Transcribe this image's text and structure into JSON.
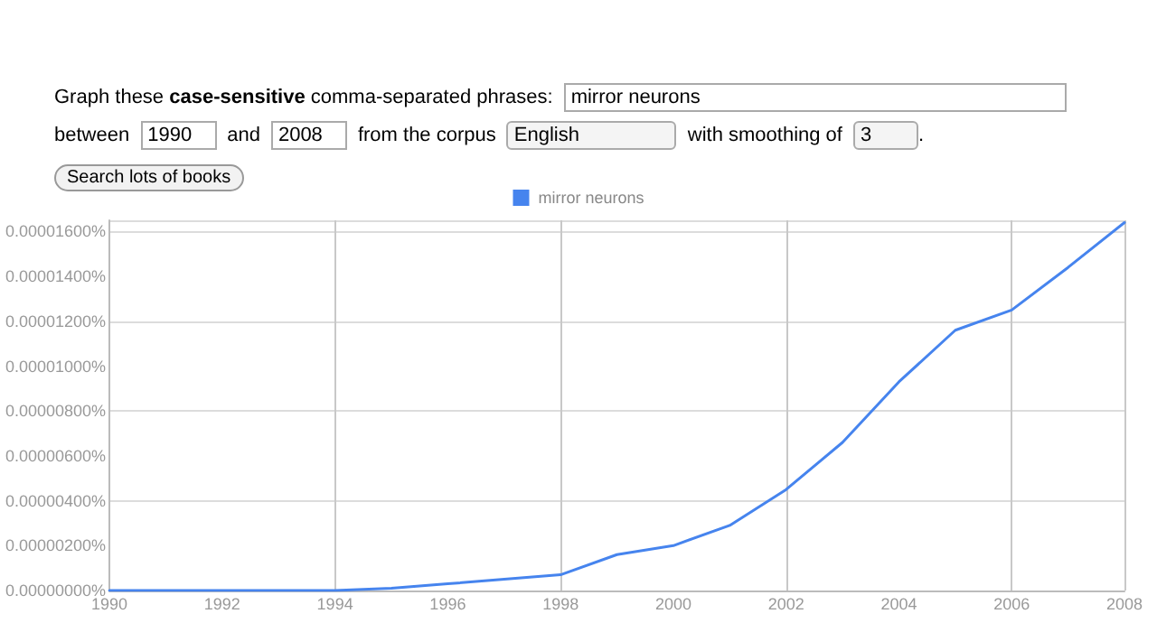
{
  "chart_data": {
    "type": "line",
    "annotations": [
      "Graph these case-sensitive comma-separated phrases:",
      "mirror neurons",
      "between",
      "1990",
      "and",
      "2008",
      "from the corpus",
      "English",
      "with smoothing of",
      "3",
      ".",
      "Search lots of books"
    ],
    "x": [
      1990,
      1991,
      1992,
      1993,
      1994,
      1995,
      1996,
      1997,
      1998,
      1999,
      2000,
      2001,
      2002,
      2003,
      2004,
      2005,
      2006,
      2007,
      2008
    ],
    "series": [
      {
        "name": "mirror neurons",
        "color": "#4684ee",
        "values": [
          0,
          0,
          0,
          0,
          0,
          1e-07,
          3e-07,
          5e-07,
          7e-07,
          1.6e-06,
          2e-06,
          2.9e-06,
          4.5e-06,
          6.6e-06,
          9.3e-06,
          1.16e-05,
          1.25e-05,
          1.44e-05,
          1.64e-05
        ]
      }
    ],
    "xlim": [
      1990,
      2008
    ],
    "xticks": [
      1990,
      1992,
      1994,
      1996,
      1998,
      2000,
      2002,
      2004,
      2006,
      2008
    ],
    "ylim": [
      0,
      1.65e-05
    ],
    "yticks": [
      {
        "value": 0,
        "label": "0.00000000%"
      },
      {
        "value": 2e-06,
        "label": "0.00000200%"
      },
      {
        "value": 4e-06,
        "label": "0.00000400%"
      },
      {
        "value": 6e-06,
        "label": "0.00000600%"
      },
      {
        "value": 8e-06,
        "label": "0.00000800%"
      },
      {
        "value": 1e-05,
        "label": "0.00001000%"
      },
      {
        "value": 1.2e-05,
        "label": "0.00001200%"
      },
      {
        "value": 1.4e-05,
        "label": "0.00001400%"
      },
      {
        "value": 1.6e-05,
        "label": "0.00001600%"
      }
    ],
    "grid": true,
    "legend": "top",
    "marker": "none",
    "line_style": "solid"
  }
}
